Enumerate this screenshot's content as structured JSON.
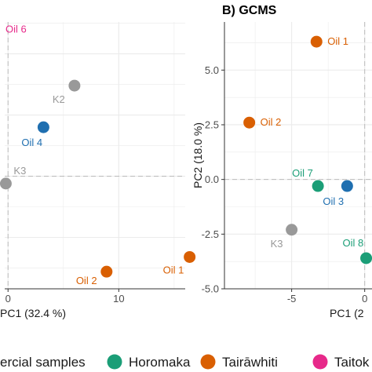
{
  "colors": {
    "commercial": "#999999",
    "horomaka": "#1b9e77",
    "tairawhiti": "#d95f02",
    "taitokerau": "#e7298a",
    "cluster_blue": "#1f6fb0"
  },
  "legend": {
    "items": [
      {
        "label": "ercial samples",
        "color_key": "commercial"
      },
      {
        "label": "Horomaka",
        "color_key": "horomaka"
      },
      {
        "label": "Tairāwhiti",
        "color_key": "tairawhiti"
      },
      {
        "label": "Taitok",
        "color_key": "taitokerau"
      }
    ]
  },
  "chart_data": [
    {
      "type": "scatter",
      "panel_title": "",
      "xlabel": "PC1 (32.4 %)",
      "ylabel": "",
      "x_ticks": [
        0,
        10
      ],
      "y_ticks": [],
      "xlim": [
        -0.3,
        16
      ],
      "ylim": [
        -4.6,
        6.3
      ],
      "grid": true,
      "points": [
        {
          "label": "Oil 6",
          "x": 0.2,
          "y": 6.0,
          "group": "taitokerau"
        },
        {
          "label": "K2",
          "x": 6.0,
          "y": 3.7,
          "group": "commercial"
        },
        {
          "label": "Oil 4",
          "x": 3.2,
          "y": 2.0,
          "group": "cluster_blue"
        },
        {
          "label": "K3",
          "x": -0.2,
          "y": -0.3,
          "group": "commercial"
        },
        {
          "label": "Oil 2",
          "x": 8.9,
          "y": -3.9,
          "group": "tairawhiti"
        },
        {
          "label": "Oil 1",
          "x": 16.4,
          "y": -3.3,
          "group": "tairawhiti"
        }
      ]
    },
    {
      "type": "scatter",
      "panel_title": "B) GCMS",
      "xlabel": "PC1 (2",
      "ylabel": "PC2 (18.0 %)",
      "x_ticks": [
        -5,
        0
      ],
      "y_ticks": [
        5.0,
        2.5,
        0.0,
        -2.5,
        -5.0
      ],
      "y_tick_labels": [
        "5.0",
        "2.5",
        "0.0",
        "-2.5",
        "-5.0"
      ],
      "x_tick_labels": [
        "-5",
        "0"
      ],
      "xlim": [
        -9.6,
        0.5
      ],
      "ylim": [
        -5.0,
        7.2
      ],
      "grid": true,
      "points": [
        {
          "label": "Oil 1",
          "x": -3.3,
          "y": 6.3,
          "group": "tairawhiti"
        },
        {
          "label": "Oil 2",
          "x": -7.9,
          "y": 2.6,
          "group": "tairawhiti"
        },
        {
          "label": "Oil 7",
          "x": -3.2,
          "y": -0.3,
          "group": "horomaka"
        },
        {
          "label": "Oil 3",
          "x": -1.2,
          "y": -0.3,
          "group": "cluster_blue"
        },
        {
          "label": "K3",
          "x": -5.0,
          "y": -2.3,
          "group": "commercial"
        },
        {
          "label": "Oil 8",
          "x": 0.1,
          "y": -3.6,
          "group": "horomaka"
        }
      ]
    }
  ]
}
